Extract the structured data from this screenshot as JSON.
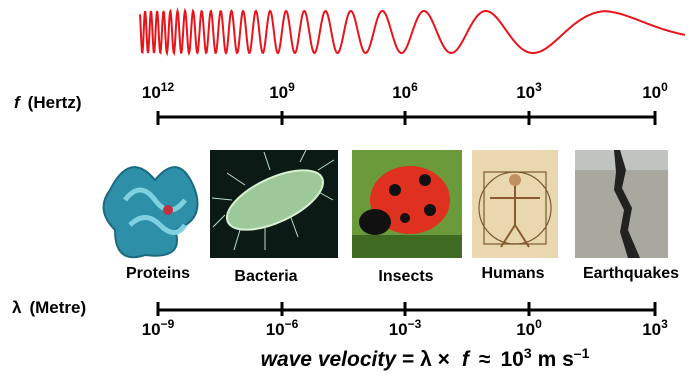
{
  "top_axis": {
    "label_symbol": "f",
    "label_unit": "(Hertz)",
    "ticks": [
      {
        "base": "10",
        "exp": "12"
      },
      {
        "base": "10",
        "exp": "9"
      },
      {
        "base": "10",
        "exp": "6"
      },
      {
        "base": "10",
        "exp": "3"
      },
      {
        "base": "10",
        "exp": "0"
      }
    ]
  },
  "images": [
    {
      "label": "Proteins"
    },
    {
      "label": "Bacteria"
    },
    {
      "label": "Insects"
    },
    {
      "label": "Humans"
    },
    {
      "label": "Earthquakes"
    }
  ],
  "bottom_axis": {
    "label_symbol": "λ",
    "label_unit": "(Metre)",
    "ticks": [
      {
        "base": "10",
        "exp": "−9"
      },
      {
        "base": "10",
        "exp": "−6"
      },
      {
        "base": "10",
        "exp": "−3"
      },
      {
        "base": "10",
        "exp": "0"
      },
      {
        "base": "10",
        "exp": "3"
      }
    ]
  },
  "formula": {
    "lhs": "wave velocity",
    "eq": "= λ ×",
    "f": "f",
    "approx": "≈",
    "base": "10",
    "exp": "3",
    "unit": "m s",
    "unit_exp": "–1"
  }
}
